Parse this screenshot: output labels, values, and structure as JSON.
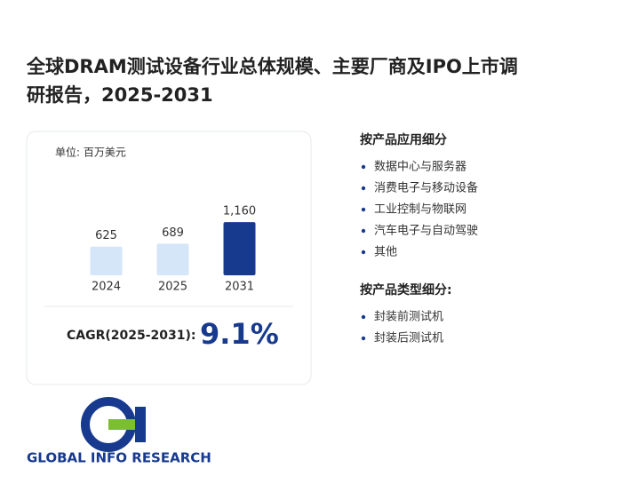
{
  "title": [
    "全球DRAM测试设备行业总体规模、主要厂商及IPO上市调",
    "研报告，2025-2031"
  ],
  "chart_data": {
    "type": "bar",
    "unit": "单位: 百万美元",
    "categories": [
      "2024",
      "2025",
      "2031"
    ],
    "values": [
      625,
      689,
      1160
    ],
    "value_labels": [
      "625",
      "689",
      "1,160"
    ],
    "colors": [
      "#d5e6f8",
      "#d5e6f8",
      "#173a8e"
    ],
    "ylim": [
      0,
      1200
    ]
  },
  "cagr": {
    "label": "CAGR(2025-2031):",
    "value": "9.1%"
  },
  "segments": [
    {
      "heading": "按产品应用细分",
      "items": [
        "数据中心与服务器",
        "消费电子与移动设备",
        "工业控制与物联网",
        "汽车电子与自动驾驶",
        "其他"
      ]
    },
    {
      "heading": "按产品类型细分:",
      "items": [
        "封装前测试机",
        "封装后测试机"
      ]
    }
  ],
  "logo": "GLOBAL INFO RESEARCH"
}
